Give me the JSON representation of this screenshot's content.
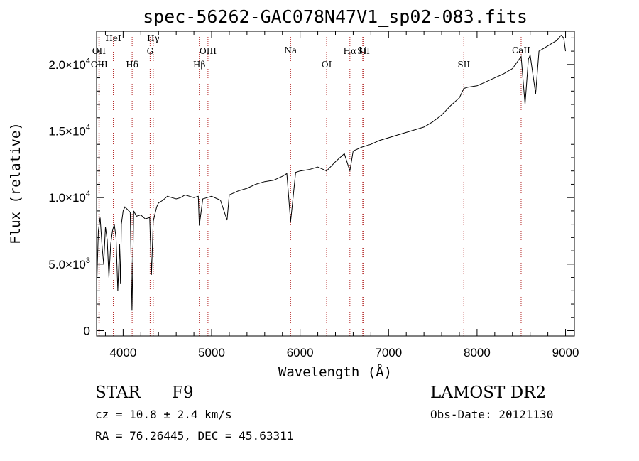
{
  "chart_data": {
    "type": "line",
    "title": "spec-56262-GAC078N47V1_sp02-083.fits",
    "xlabel": "Wavelength (Å)",
    "ylabel": "Flux (relative)",
    "xlim": [
      3700,
      9100
    ],
    "ylim": [
      -400,
      22500
    ],
    "x_ticks": [
      {
        "value": 4000,
        "label": "4000"
      },
      {
        "value": 5000,
        "label": "5000"
      },
      {
        "value": 6000,
        "label": "6000"
      },
      {
        "value": 7000,
        "label": "7000"
      },
      {
        "value": 8000,
        "label": "8000"
      },
      {
        "value": 9000,
        "label": "9000"
      }
    ],
    "y_ticks": [
      {
        "value": 0,
        "mantissa": "0",
        "exponent": ""
      },
      {
        "value": 5000,
        "mantissa": "5.0×10",
        "exponent": "3"
      },
      {
        "value": 10000,
        "mantissa": "1.0×10",
        "exponent": "4"
      },
      {
        "value": 15000,
        "mantissa": "1.5×10",
        "exponent": "4"
      },
      {
        "value": 20000,
        "mantissa": "2.0×10",
        "exponent": "4"
      }
    ],
    "line_color": "#000000",
    "marker_color": "#b22222",
    "series": [
      {
        "x": [
          3700,
          3720,
          3740,
          3760,
          3780,
          3800,
          3820,
          3840,
          3860,
          3880,
          3900,
          3920,
          3940,
          3960,
          3970,
          3980,
          4000,
          4020,
          4050,
          4080,
          4100,
          4120,
          4150,
          4200,
          4250,
          4300,
          4320,
          4340,
          4360,
          4380,
          4400,
          4450,
          4500,
          4550,
          4600,
          4650,
          4700,
          4750,
          4800,
          4850,
          4861,
          4900,
          4950,
          5000,
          5100,
          5175,
          5200,
          5300,
          5400,
          5500,
          5600,
          5700,
          5800,
          5850,
          5893,
          5950,
          6000,
          6100,
          6200,
          6300,
          6400,
          6500,
          6563,
          6600,
          6700,
          6800,
          6900,
          7000,
          7100,
          7200,
          7300,
          7400,
          7500,
          7600,
          7700,
          7800,
          7850,
          7900,
          8000,
          8100,
          8200,
          8300,
          8400,
          8498,
          8542,
          8580,
          8600,
          8662,
          8700,
          8800,
          8900,
          8950,
          8980,
          9000
        ],
        "y": [
          3000,
          7500,
          8500,
          6500,
          5000,
          7800,
          6800,
          4000,
          6500,
          7500,
          8000,
          7000,
          3000,
          6500,
          3500,
          8000,
          9000,
          9300,
          9100,
          8900,
          1500,
          9000,
          8600,
          8700,
          8400,
          8500,
          4200,
          8200,
          8800,
          9300,
          9600,
          9800,
          10100,
          10000,
          9900,
          10000,
          10200,
          10100,
          10000,
          10100,
          7900,
          9900,
          10000,
          10100,
          9800,
          8300,
          10200,
          10500,
          10700,
          11000,
          11200,
          11300,
          11600,
          11800,
          8200,
          11900,
          12000,
          12100,
          12300,
          12000,
          12700,
          13300,
          12000,
          13500,
          13800,
          14000,
          14300,
          14500,
          14700,
          14900,
          15100,
          15300,
          15700,
          16200,
          16900,
          17500,
          18200,
          18300,
          18400,
          18700,
          19000,
          19300,
          19700,
          20600,
          17000,
          20400,
          20700,
          17800,
          21000,
          21400,
          21800,
          22200,
          22000,
          21000
        ]
      }
    ],
    "lines": [
      {
        "label": "OII",
        "wave": 3727,
        "row": 2
      },
      {
        "label": "OIII",
        "wave": 3730,
        "row": 3
      },
      {
        "label": "HeI",
        "wave": 3889,
        "row": 0
      },
      {
        "label": "Hδ",
        "wave": 4102,
        "row": 3
      },
      {
        "label": "Hγ",
        "wave": 4341,
        "row": 0
      },
      {
        "label": "G",
        "wave": 4305,
        "row": 2
      },
      {
        "label": "Hβ",
        "wave": 4861,
        "row": 3
      },
      {
        "label": "OIII",
        "wave": 4959,
        "row": 2
      },
      {
        "label": "Na",
        "wave": 5893,
        "row": 1
      },
      {
        "label": "OI",
        "wave": 6300,
        "row": 3
      },
      {
        "label": "Hα",
        "wave": 6563,
        "row": 2
      },
      {
        "label": "SII",
        "wave": 6717,
        "row": 2
      },
      {
        "label": "Li",
        "wave": 6708,
        "row": 1
      },
      {
        "label": "SII",
        "wave": 7850,
        "row": 3
      },
      {
        "label": "CaII",
        "wave": 8498,
        "row": 1
      }
    ]
  },
  "info": {
    "object_class": "STAR",
    "subclass": "F9",
    "cz": "cz = 10.8 ± 2.4 km/s",
    "coords": "RA =  76.26445, DEC =  45.63311",
    "survey": "LAMOST DR2",
    "obs_date": "Obs-Date: 20121130"
  }
}
